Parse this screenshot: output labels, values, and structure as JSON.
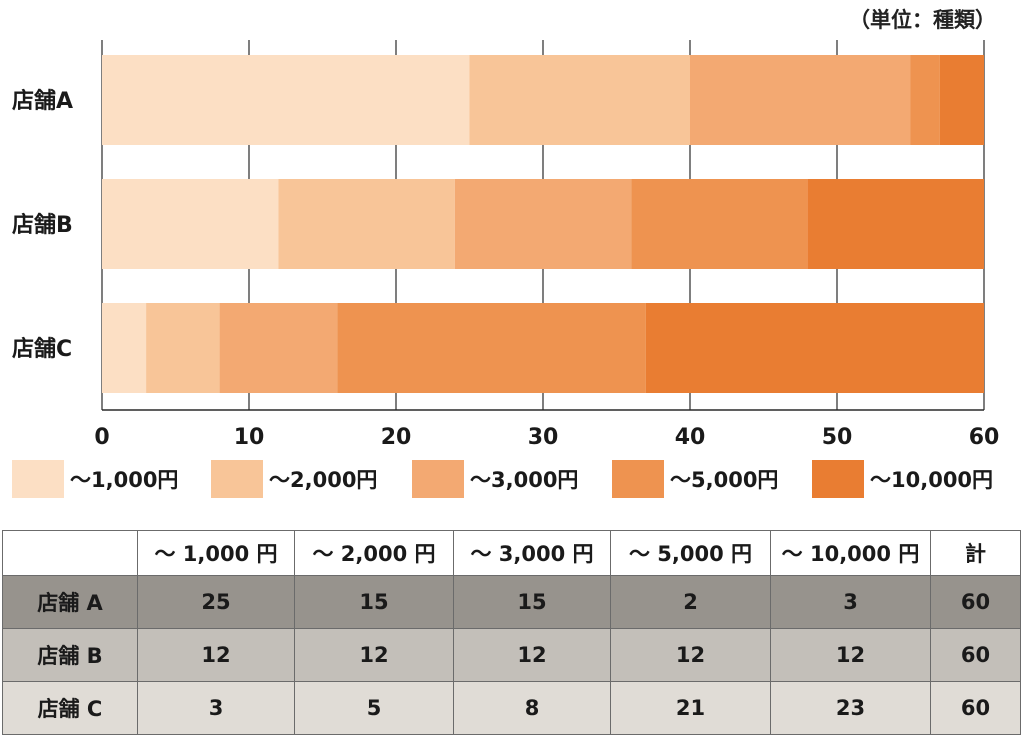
{
  "unit_label": "（単位：種類）",
  "colors": [
    "#fcdfc4",
    "#f8c598",
    "#f3a972",
    "#ee9350",
    "#e97d32"
  ],
  "chart_data": {
    "type": "bar",
    "orientation": "horizontal",
    "stacked": true,
    "categories": [
      "店舗A",
      "店舗B",
      "店舗C"
    ],
    "series": [
      {
        "name": "～1,000円",
        "values": [
          25,
          12,
          3
        ]
      },
      {
        "name": "～2,000円",
        "values": [
          15,
          12,
          5
        ]
      },
      {
        "name": "～3,000円",
        "values": [
          15,
          12,
          8
        ]
      },
      {
        "name": "～5,000円",
        "values": [
          2,
          12,
          21
        ]
      },
      {
        "name": "～10,000円",
        "values": [
          3,
          12,
          23
        ]
      }
    ],
    "xlim": [
      0,
      60
    ],
    "xticks": [
      0,
      10,
      20,
      30,
      40,
      50,
      60
    ],
    "grid": true,
    "legend": "bottom"
  },
  "table": {
    "headers": [
      "",
      "～ 1,000 円",
      "～ 2,000 円",
      "～ 3,000 円",
      "～ 5,000 円",
      "～ 10,000 円",
      "計"
    ],
    "rows": [
      {
        "label": "店舗 A",
        "cells": [
          "25",
          "15",
          "15",
          "2",
          "3",
          "60"
        ]
      },
      {
        "label": "店舗 B",
        "cells": [
          "12",
          "12",
          "12",
          "12",
          "12",
          "60"
        ]
      },
      {
        "label": "店舗 C",
        "cells": [
          "3",
          "5",
          "8",
          "21",
          "23",
          "60"
        ]
      }
    ]
  }
}
